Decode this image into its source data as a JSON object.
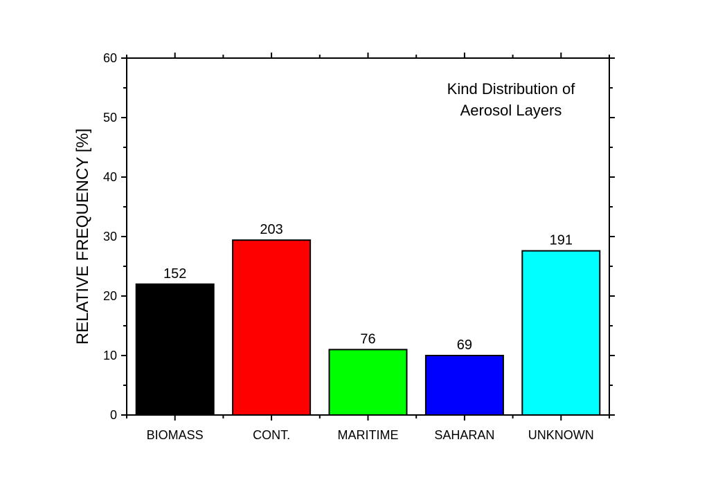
{
  "chart_data": {
    "type": "bar",
    "categories": [
      "BIOMASS",
      "CONT.",
      "MARITIME",
      "SAHARAN",
      "UNKNOWN"
    ],
    "values": [
      22.0,
      29.4,
      11.0,
      10.0,
      27.6
    ],
    "data_labels": [
      "152",
      "203",
      "76",
      "69",
      "191"
    ],
    "colors": [
      "#000000",
      "#ff0000",
      "#00ff00",
      "#0000ff",
      "#00ffff"
    ],
    "ylabel": "RELATIVE FREQUENCY [%]",
    "xlabel": "",
    "ylim": [
      0,
      60
    ],
    "yticks": [
      0,
      10,
      20,
      30,
      40,
      50,
      60
    ],
    "ytick_labels": [
      "0",
      "10",
      "20",
      "30",
      "40",
      "50",
      "60"
    ],
    "annotation": [
      "Kind Distribution of",
      "Aerosol Layers"
    ],
    "grid": false,
    "legend": "none"
  }
}
